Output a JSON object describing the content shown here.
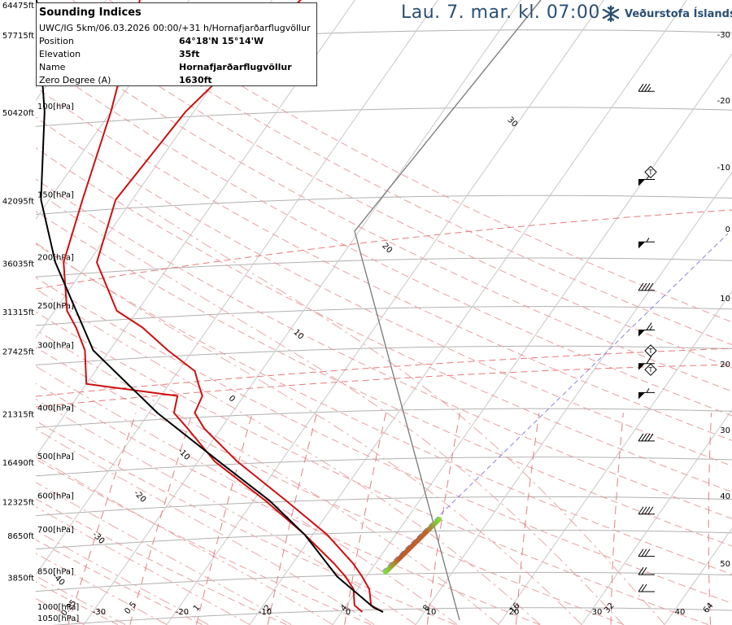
{
  "headline": "Lau. 7. mar. kl. 07:00",
  "brand": {
    "name": "Veðurstofa Íslands",
    "color": "#2a4f73"
  },
  "info": {
    "title": "Sounding Indices",
    "subtitle": "UWC/IG 5km/06.03.2026 00:00/+31 h/Hornafjarðarflugvöllur",
    "rows": [
      {
        "label": "Position",
        "value": "64°18'N 15°14'W"
      },
      {
        "label": "Elevation",
        "value": "35ft"
      },
      {
        "label": "Name",
        "value": "Hornafjarðarflugvöllur"
      },
      {
        "label": "Zero Degree (A)",
        "value": "1630ft"
      }
    ]
  },
  "colors": {
    "temperature": "#cc1010",
    "dewpoint": "#cc1010",
    "parcel": "#000000",
    "isobar": "#b0b0b0",
    "isotherm": "#c8c8c8",
    "dry_adiabat": "#e8a0a0",
    "moist_adiabat": "#e8a0a0",
    "mixing_ratio": "#e08080",
    "wind": "#000000"
  },
  "chart_data": {
    "type": "skew-t",
    "left_axis_labels": [
      {
        "p": 1000,
        "label": "1000[hPa]"
      },
      {
        "p": 1050,
        "label": "1050[hPa]"
      },
      {
        "p": 850,
        "label": "850[hPa]"
      },
      {
        "p": 700,
        "label": "700[hPa]"
      },
      {
        "p": 600,
        "label": "600[hPa]"
      },
      {
        "p": 500,
        "label": "500[hPa]"
      },
      {
        "p": 400,
        "label": "400[hPa]"
      },
      {
        "p": 300,
        "label": "300[hPa]"
      },
      {
        "p": 250,
        "label": "250[hPa]"
      },
      {
        "p": 200,
        "label": "200[hPa]"
      },
      {
        "p": 150,
        "label": "150[hPa]"
      },
      {
        "p": 100,
        "label": "100[hPa]"
      }
    ],
    "height_labels": [
      {
        "p": 850,
        "label": "3850ft"
      },
      {
        "p": 700,
        "label": "8650ft"
      },
      {
        "p": 600,
        "label": "12325ft"
      },
      {
        "p": 500,
        "label": "16490ft"
      },
      {
        "p": 400,
        "label": "21315ft"
      },
      {
        "p": 300,
        "label": "27425ft"
      },
      {
        "p": 250,
        "label": "31315ft"
      },
      {
        "p": 200,
        "label": "36035ft"
      },
      {
        "p": 150,
        "label": "42095ft"
      },
      {
        "p": 100,
        "label": "50420ft"
      },
      {
        "p": 70,
        "label": "57715ft"
      },
      {
        "p": 50,
        "label": "64475ft"
      }
    ],
    "isotherms": [
      -40,
      -30,
      -20,
      -10,
      0,
      10,
      20,
      30,
      40,
      50
    ],
    "temp_axis_labels": [
      -30,
      -20,
      -10,
      0,
      10,
      20,
      30,
      40,
      50
    ],
    "right_labels": [
      -30,
      -20,
      -10,
      0,
      10,
      20,
      30,
      40,
      50
    ],
    "mixing_ratios": [
      0.25,
      0.5,
      1,
      2,
      4,
      8,
      16,
      32,
      64,
      125
    ],
    "mixing_ratio_labels": [
      "0.25",
      "0.5",
      "1",
      "2",
      "4",
      "8",
      "16",
      "32",
      "64",
      "125"
    ],
    "dry_adiabat_labels": [
      -40,
      -30,
      -20,
      -10,
      0,
      10,
      20,
      30
    ],
    "temperature": [
      {
        "p": 1000,
        "t": 5.0
      },
      {
        "p": 970,
        "t": 3.0
      },
      {
        "p": 900,
        "t": 1.4
      },
      {
        "p": 850,
        "t": -0.5
      },
      {
        "p": 800,
        "t": -2.7
      },
      {
        "p": 700,
        "t": -8.3
      },
      {
        "p": 600,
        "t": -16.0
      },
      {
        "p": 500,
        "t": -25.3
      },
      {
        "p": 430,
        "t": -32.0
      },
      {
        "p": 400,
        "t": -34.5
      },
      {
        "p": 370,
        "t": -35.0
      },
      {
        "p": 350,
        "t": -36.5
      },
      {
        "p": 330,
        "t": -38.0
      },
      {
        "p": 300,
        "t": -43.0
      },
      {
        "p": 270,
        "t": -48.0
      },
      {
        "p": 250,
        "t": -52.5
      },
      {
        "p": 200,
        "t": -59.0
      },
      {
        "p": 150,
        "t": -62.0
      },
      {
        "p": 100,
        "t": -61.0
      },
      {
        "p": 50,
        "t": -55.0
      }
    ],
    "dewpoint": [
      {
        "p": 1000,
        "t": 2.5
      },
      {
        "p": 970,
        "t": 1.0
      },
      {
        "p": 900,
        "t": -0.5
      },
      {
        "p": 850,
        "t": -2.5
      },
      {
        "p": 800,
        "t": -5.0
      },
      {
        "p": 700,
        "t": -11.0
      },
      {
        "p": 600,
        "t": -18.5
      },
      {
        "p": 500,
        "t": -28.0
      },
      {
        "p": 430,
        "t": -34.0
      },
      {
        "p": 400,
        "t": -37.0
      },
      {
        "p": 370,
        "t": -38.0
      },
      {
        "p": 350,
        "t": -50.0
      },
      {
        "p": 300,
        "t": -53.0
      },
      {
        "p": 270,
        "t": -56.0
      },
      {
        "p": 250,
        "t": -58.5
      },
      {
        "p": 200,
        "t": -63.0
      },
      {
        "p": 150,
        "t": -66.0
      },
      {
        "p": 100,
        "t": -70.0
      },
      {
        "p": 50,
        "t": -78.0
      }
    ],
    "parcel": [
      {
        "p": 1000,
        "t": 5.0
      },
      {
        "p": 980,
        "t": 3.5
      },
      {
        "p": 850,
        "t": -3.5
      },
      {
        "p": 700,
        "t": -11.0
      },
      {
        "p": 600,
        "t": -18.0
      },
      {
        "p": 500,
        "t": -27.5
      },
      {
        "p": 400,
        "t": -39.0
      },
      {
        "p": 300,
        "t": -52.0
      },
      {
        "p": 200,
        "t": -64.0
      },
      {
        "p": 150,
        "t": -71.0
      },
      {
        "p": 100,
        "t": -78.0
      },
      {
        "p": 50,
        "t": -92.0
      }
    ],
    "wind": [
      {
        "p": 1000,
        "dir": 270,
        "speed": 20
      },
      {
        "p": 925,
        "dir": 270,
        "speed": 20
      },
      {
        "p": 850,
        "dir": 270,
        "speed": 30
      },
      {
        "p": 700,
        "dir": 270,
        "speed": 40
      },
      {
        "p": 500,
        "dir": 270,
        "speed": 40
      },
      {
        "p": 400,
        "dir": 270,
        "speed": 55
      },
      {
        "p": 350,
        "dir": 270,
        "speed": 60
      },
      {
        "p": 300,
        "dir": 270,
        "speed": 65
      },
      {
        "p": 250,
        "dir": 270,
        "speed": 40
      },
      {
        "p": 200,
        "dir": 270,
        "speed": 55
      },
      {
        "p": 150,
        "dir": 270,
        "speed": 60
      },
      {
        "p": 100,
        "dir": 270,
        "speed": 35
      }
    ],
    "tropopause_markers": [
      {
        "p": 145,
        "label": "T"
      },
      {
        "p": 330,
        "label": "T"
      },
      {
        "p": 360,
        "label": "T"
      }
    ]
  }
}
